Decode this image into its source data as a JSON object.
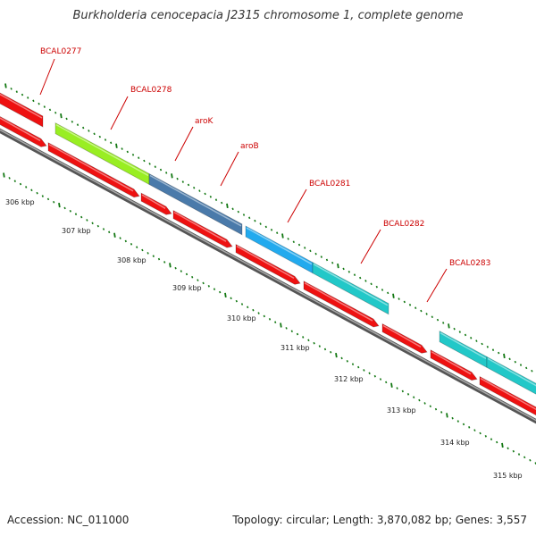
{
  "title": "Burkholderia cenocepacia J2315 chromosome 1, complete genome",
  "footer": {
    "accession": "Accession: NC_011000",
    "stats": "Topology: circular; Length: 3,870,082 bp; Genes: 3,557"
  },
  "colors": {
    "cds": "#ee1111",
    "backbone": "#777777",
    "tick": "#117711",
    "label": "#cc0000"
  },
  "genes": [
    {
      "name": "BCAL0277",
      "color": "#ee1111"
    },
    {
      "name": "BCAL0278",
      "color": "#99ee22"
    },
    {
      "name": "aroK",
      "color": "#4a7aaa"
    },
    {
      "name": "aroB",
      "color": "#22aaee"
    },
    {
      "name": "BCAL0281",
      "color": "#22c8c8"
    },
    {
      "name": "BCAL0282",
      "color": "#22c8c8"
    },
    {
      "name": "BCAL0283",
      "color": "#22c8c8"
    }
  ],
  "kbp_labels": [
    "306 kbp",
    "307 kbp",
    "308 kbp",
    "309 kbp",
    "310 kbp",
    "311 kbp",
    "312 kbp",
    "313 kbp",
    "314 kbp",
    "315 kbp"
  ]
}
